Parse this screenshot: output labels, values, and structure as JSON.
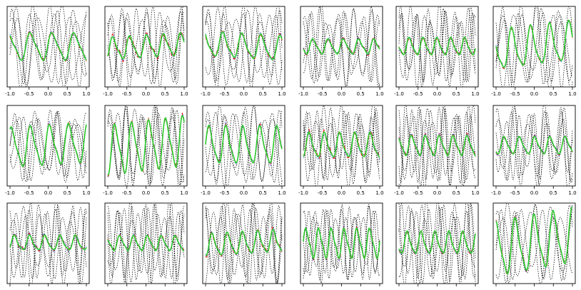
{
  "chart_data": {
    "type": "line",
    "layout": {
      "rows": 3,
      "cols": 6
    },
    "title": "",
    "xlabel": "",
    "ylabel": "",
    "xlim": [
      -1.0,
      1.0
    ],
    "ylim": [
      -1.6,
      1.6
    ],
    "grid": false,
    "legend": "none",
    "x_ticks": [
      -1.0,
      -0.5,
      0.0,
      0.5,
      1.0
    ],
    "x_tick_labels": [
      "-1.0",
      "-0.5",
      "0.0",
      "0.5",
      "1.0"
    ],
    "tick_labels_rows": [
      0,
      1
    ],
    "series_styles": [
      {
        "id": "draws",
        "color": "#000000",
        "dash": "1.6,1.6",
        "count": 4
      },
      {
        "id": "estimate-1",
        "color": "#e41a1c",
        "dash": "5,2.5"
      },
      {
        "id": "estimate-2",
        "color": "#1f3fd6",
        "dash": "1,2"
      },
      {
        "id": "truth",
        "color": "#2ecc2e",
        "dash": "none"
      }
    ],
    "panels": [
      {
        "freq": 3.5,
        "phase": 0.2,
        "amp": 0.55,
        "trend": 0.0,
        "noise": 0.25
      },
      {
        "freq": 4.5,
        "phase": 1.1,
        "amp": 0.45,
        "trend": 0.05,
        "noise": 0.3
      },
      {
        "freq": 4.0,
        "phase": 2.0,
        "amp": 0.5,
        "trend": -0.05,
        "noise": 0.3
      },
      {
        "freq": 5.0,
        "phase": 0.6,
        "amp": 0.3,
        "trend": 0.0,
        "noise": 0.2
      },
      {
        "freq": 5.5,
        "phase": 1.5,
        "amp": 0.35,
        "trend": 0.0,
        "noise": 0.2
      },
      {
        "freq": 4.0,
        "phase": 2.6,
        "amp": 0.8,
        "trend": 0.1,
        "noise": 0.25
      },
      {
        "freq": 4.0,
        "phase": 0.9,
        "amp": 0.8,
        "trend": 0.05,
        "noise": 0.2
      },
      {
        "freq": 4.5,
        "phase": 0.3,
        "amp": 1.0,
        "trend": 0.1,
        "noise": 0.2
      },
      {
        "freq": 4.5,
        "phase": 1.7,
        "amp": 0.75,
        "trend": 0.0,
        "noise": 0.2
      },
      {
        "freq": 5.0,
        "phase": 2.2,
        "amp": 0.5,
        "trend": 0.0,
        "noise": 0.25
      },
      {
        "freq": 5.5,
        "phase": 0.4,
        "amp": 0.4,
        "trend": 0.0,
        "noise": 0.25
      },
      {
        "freq": 5.0,
        "phase": 1.2,
        "amp": 0.35,
        "trend": 0.0,
        "noise": 0.25
      },
      {
        "freq": 5.0,
        "phase": 2.8,
        "amp": 0.3,
        "trend": 0.0,
        "noise": 0.3
      },
      {
        "freq": 5.5,
        "phase": 0.7,
        "amp": 0.3,
        "trend": 0.0,
        "noise": 0.2
      },
      {
        "freq": 5.0,
        "phase": 1.9,
        "amp": 0.45,
        "trend": 0.05,
        "noise": 0.25
      },
      {
        "freq": 6.0,
        "phase": 0.1,
        "amp": 0.6,
        "trend": 0.0,
        "noise": 0.2
      },
      {
        "freq": 5.5,
        "phase": 2.4,
        "amp": 0.45,
        "trend": 0.0,
        "noise": 0.2
      },
      {
        "freq": 4.0,
        "phase": 1.4,
        "amp": 1.1,
        "trend": 0.15,
        "noise": 0.2
      }
    ]
  }
}
